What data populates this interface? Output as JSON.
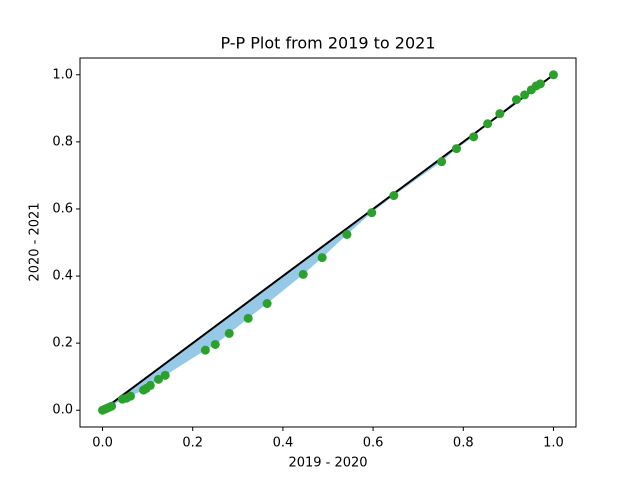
{
  "chart_data": {
    "type": "scatter",
    "title": "P-P Plot from 2019 to 2021",
    "x_label": "2019 - 2020",
    "y_label": "2020 - 2021",
    "xlim": [
      -0.05,
      1.05
    ],
    "ylim": [
      -0.05,
      1.05
    ],
    "xticks": [
      {
        "value": 0,
        "label": "0.0"
      },
      {
        "value": 0.2,
        "label": "0.2"
      },
      {
        "value": 0.4,
        "label": "0.4"
      },
      {
        "value": 0.6,
        "label": "0.6"
      },
      {
        "value": 0.8,
        "label": "0.8"
      },
      {
        "value": 1,
        "label": "1.0"
      }
    ],
    "yticks": [
      {
        "value": 0,
        "label": "0.0"
      },
      {
        "value": 0.2,
        "label": "0.2"
      },
      {
        "value": 0.4,
        "label": "0.4"
      },
      {
        "value": 0.6,
        "label": "0.6"
      },
      {
        "value": 0.8,
        "label": "0.8"
      },
      {
        "value": 1,
        "label": "1.0"
      }
    ],
    "fill_color": "#96c9e6",
    "diagonal": {
      "x": [
        0,
        1
      ],
      "y": [
        0,
        1
      ],
      "color": "#000000"
    },
    "series": [
      {
        "color": "#2ca02c",
        "x": [
          0,
          0.005,
          0.01,
          0.015,
          0.02,
          0.044,
          0.053,
          0.062,
          0.091,
          0.097,
          0.106,
          0.124,
          0.139,
          0.228,
          0.25,
          0.281,
          0.323,
          0.365,
          0.445,
          0.487,
          0.542,
          0.597,
          0.646,
          0.752,
          0.785,
          0.823,
          0.854,
          0.881,
          0.918,
          0.936,
          0.951,
          0.962,
          0.971,
          1
        ],
        "values": [
          0,
          0.003,
          0.006,
          0.009,
          0.012,
          0.033,
          0.036,
          0.042,
          0.06,
          0.065,
          0.074,
          0.092,
          0.104,
          0.179,
          0.196,
          0.229,
          0.274,
          0.318,
          0.405,
          0.455,
          0.524,
          0.589,
          0.64,
          0.741,
          0.78,
          0.815,
          0.854,
          0.884,
          0.926,
          0.94,
          0.955,
          0.967,
          0.973,
          1
        ]
      }
    ]
  }
}
